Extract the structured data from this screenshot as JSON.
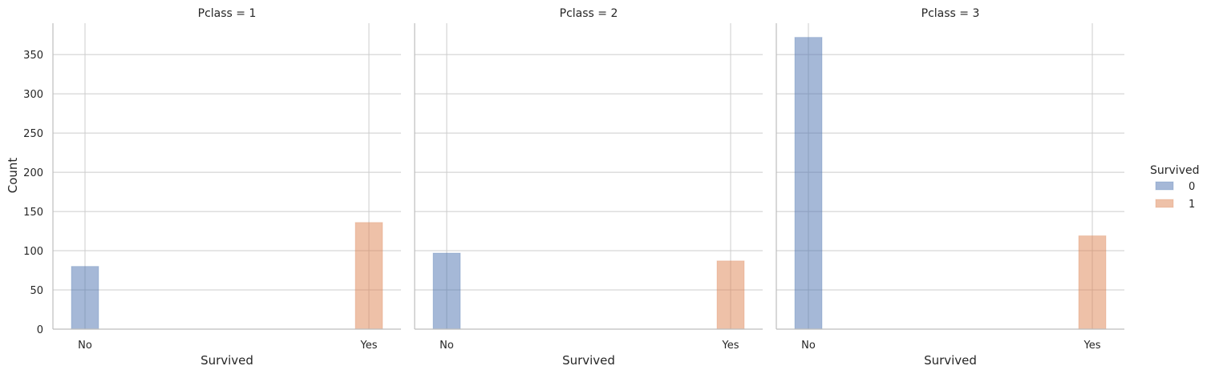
{
  "chart_data": {
    "type": "bar",
    "ylabel": "Count",
    "ylim": [
      0,
      390
    ],
    "yticks": [
      0,
      50,
      100,
      150,
      200,
      250,
      300,
      350
    ],
    "grid": true,
    "legend": {
      "title": "Survived",
      "placement": "right",
      "entries": [
        {
          "label": "0",
          "color": "#4c72b0"
        },
        {
          "label": "1",
          "color": "#dd8452"
        }
      ]
    },
    "facets": [
      {
        "title": "Pclass = 1",
        "xlabel": "Survived",
        "categories": [
          "No",
          "Yes"
        ],
        "series": [
          {
            "name": "0",
            "values": [
              80,
              0
            ]
          },
          {
            "name": "1",
            "values": [
              0,
              136
            ]
          }
        ]
      },
      {
        "title": "Pclass = 2",
        "xlabel": "Survived",
        "categories": [
          "No",
          "Yes"
        ],
        "series": [
          {
            "name": "0",
            "values": [
              97,
              0
            ]
          },
          {
            "name": "1",
            "values": [
              0,
              87
            ]
          }
        ]
      },
      {
        "title": "Pclass = 3",
        "xlabel": "Survived",
        "categories": [
          "No",
          "Yes"
        ],
        "series": [
          {
            "name": "0",
            "values": [
              372,
              0
            ]
          },
          {
            "name": "1",
            "values": [
              0,
              119
            ]
          }
        ]
      }
    ]
  }
}
